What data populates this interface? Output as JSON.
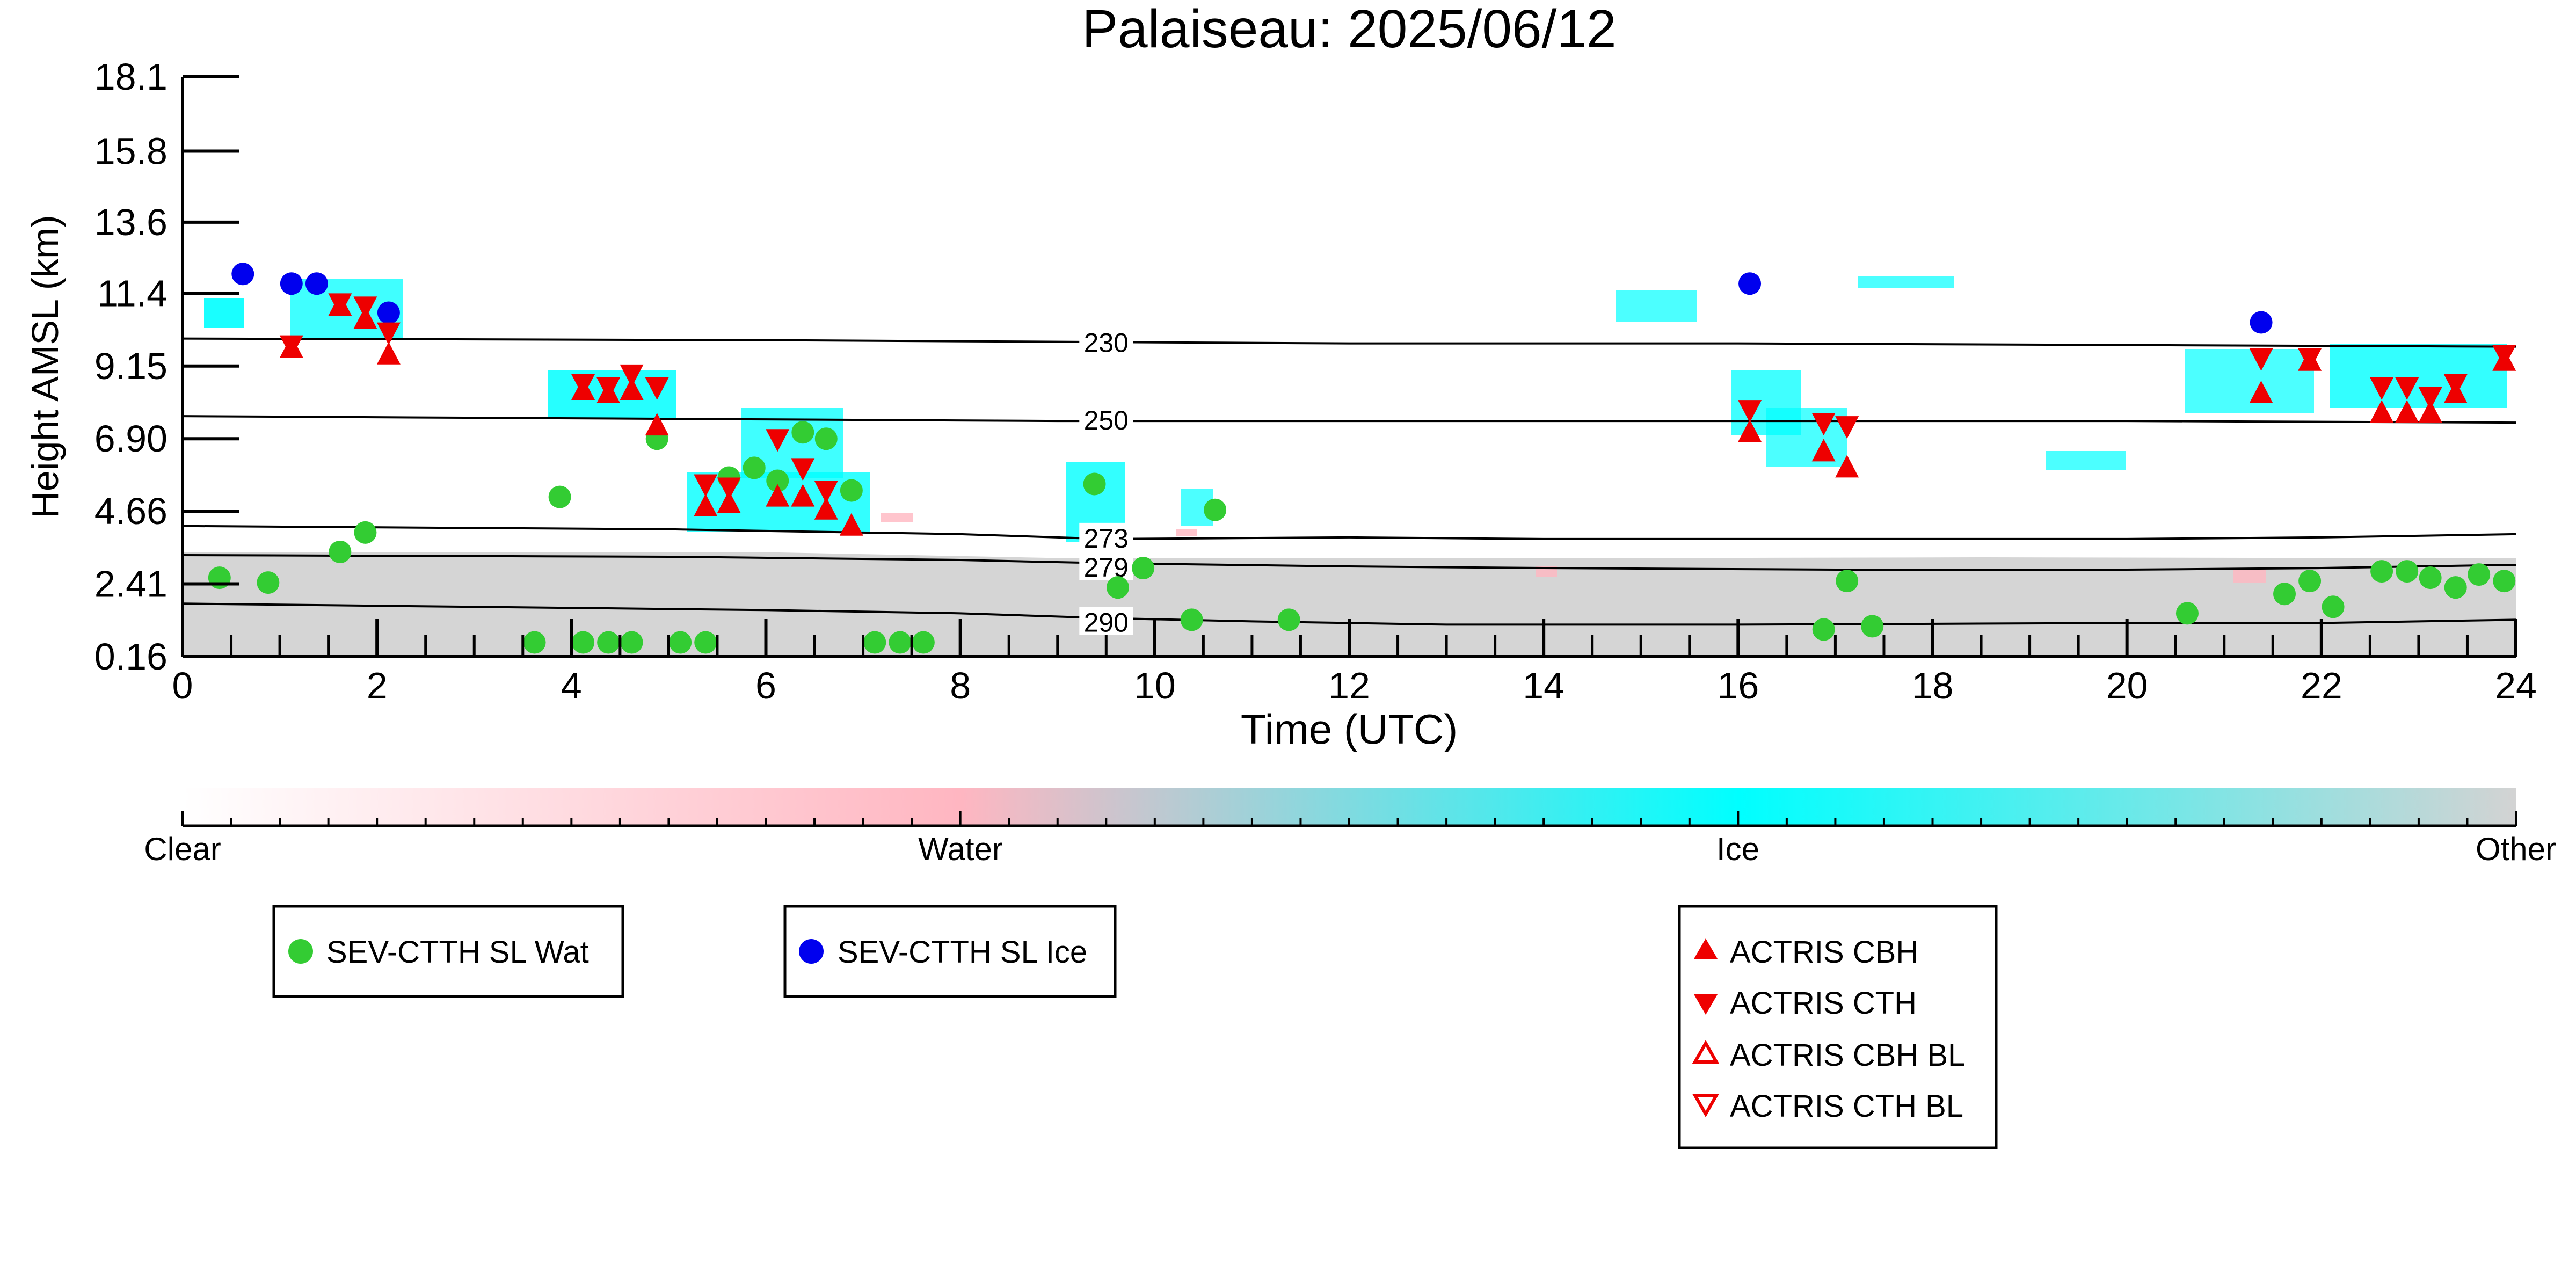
{
  "chart_data": {
    "type": "scatter",
    "title": "Palaiseau: 2025/06/12",
    "xlabel": "Time (UTC)",
    "ylabel": "Height AMSL (km)",
    "xlim": [
      0,
      24
    ],
    "ylim": [
      0.16,
      18.1
    ],
    "x_ticks": [
      "0",
      "2",
      "4",
      "6",
      "8",
      "10",
      "12",
      "14",
      "16",
      "18",
      "20",
      "22",
      "24"
    ],
    "y_ticks": [
      "0.16",
      "2.41",
      "4.66",
      "6.90",
      "9.15",
      "11.4",
      "13.6",
      "15.8",
      "18.1"
    ],
    "grid": false,
    "colorbar": {
      "labels": [
        "Clear",
        "Water",
        "Ice",
        "Other"
      ],
      "colors": [
        "#ffffff",
        "#ffb6c1",
        "#00ffff",
        "#d3d3d3"
      ]
    },
    "temperature_contours": [
      {
        "label": "230",
        "x": [
          0,
          6,
          9,
          12,
          16,
          20,
          24
        ],
        "y": [
          10.0,
          9.95,
          9.9,
          9.85,
          9.85,
          9.8,
          9.75
        ]
      },
      {
        "label": "250",
        "x": [
          0,
          6,
          9,
          12,
          16,
          20,
          24
        ],
        "y": [
          7.6,
          7.5,
          7.45,
          7.45,
          7.45,
          7.45,
          7.4
        ]
      },
      {
        "label": "273",
        "x": [
          0,
          5,
          8,
          9.5,
          12,
          14,
          17,
          20,
          22,
          24
        ],
        "y": [
          4.2,
          4.1,
          3.95,
          3.8,
          3.85,
          3.8,
          3.8,
          3.8,
          3.85,
          3.95
        ]
      },
      {
        "label": "279",
        "x": [
          0,
          5,
          8,
          9.5,
          12,
          14,
          17,
          20,
          22,
          24
        ],
        "y": [
          3.3,
          3.25,
          3.15,
          3.05,
          2.95,
          2.9,
          2.85,
          2.85,
          2.9,
          3.0
        ]
      },
      {
        "label": "290",
        "x": [
          0,
          3,
          6,
          8,
          9.5,
          11,
          12,
          13,
          16,
          20,
          22,
          24
        ],
        "y": [
          1.8,
          1.7,
          1.6,
          1.5,
          1.35,
          1.25,
          1.2,
          1.15,
          1.15,
          1.2,
          1.2,
          1.3
        ]
      }
    ],
    "series": [
      {
        "name": "SEV-CTTH SL Wat",
        "color": "#33cc33",
        "marker": "circle",
        "x": [
          0.38,
          0.88,
          1.62,
          1.88,
          3.62,
          3.88,
          4.12,
          4.38,
          4.62,
          4.88,
          5.12,
          5.38,
          5.62,
          5.88,
          6.12,
          6.38,
          6.62,
          6.88,
          7.12,
          7.38,
          7.62,
          9.38,
          9.62,
          9.88,
          10.38,
          10.62,
          11.38,
          16.88,
          17.12,
          17.38,
          20.62,
          21.62,
          21.88,
          22.12,
          22.62,
          22.88,
          23.12,
          23.38,
          23.62,
          23.88
        ],
        "y": [
          2.6,
          2.45,
          3.4,
          4.0,
          0.6,
          5.1,
          0.6,
          0.6,
          0.6,
          6.9,
          0.6,
          0.6,
          5.7,
          6.0,
          5.6,
          7.1,
          6.9,
          5.3,
          0.6,
          0.6,
          0.6,
          5.5,
          2.3,
          2.9,
          1.3,
          4.7,
          1.3,
          1.0,
          2.5,
          1.1,
          1.5,
          2.1,
          2.5,
          1.7,
          2.8,
          2.8,
          2.6,
          2.3,
          2.7,
          2.5
        ]
      },
      {
        "name": "SEV-CTTH SL Ice",
        "color": "#0000ee",
        "marker": "circle",
        "x": [
          0.62,
          1.12,
          1.38,
          2.12,
          16.12,
          21.38
        ],
        "y": [
          12.0,
          11.7,
          11.7,
          10.8,
          11.7,
          10.5
        ]
      },
      {
        "name": "ACTRIS CBH",
        "color": "#ee0000",
        "marker": "triangle-up",
        "x": [
          1.12,
          1.62,
          1.88,
          2.12,
          4.12,
          4.38,
          4.62,
          4.88,
          5.38,
          5.62,
          6.12,
          6.38,
          6.62,
          6.88,
          16.12,
          16.88,
          17.12,
          21.38,
          21.88,
          22.62,
          22.88,
          23.12,
          23.38,
          23.88
        ],
        "y": [
          9.7,
          11.0,
          10.6,
          9.5,
          8.4,
          8.3,
          8.4,
          7.3,
          4.8,
          4.9,
          5.1,
          5.1,
          4.7,
          4.2,
          7.1,
          6.5,
          6.0,
          8.3,
          9.3,
          7.7,
          7.7,
          7.7,
          8.3,
          9.3
        ]
      },
      {
        "name": "ACTRIS CTH",
        "color": "#ee0000",
        "marker": "triangle-down",
        "x": [
          1.12,
          1.62,
          1.88,
          2.12,
          4.12,
          4.38,
          4.62,
          4.88,
          5.38,
          5.62,
          6.12,
          6.38,
          6.62,
          16.12,
          16.88,
          17.12,
          21.38,
          21.88,
          22.62,
          22.88,
          23.12,
          23.38,
          23.88
        ],
        "y": [
          9.8,
          11.1,
          11.0,
          10.2,
          8.6,
          8.5,
          8.9,
          8.5,
          5.5,
          5.4,
          6.9,
          6.0,
          5.3,
          7.8,
          7.4,
          7.3,
          9.4,
          9.4,
          8.5,
          8.5,
          8.2,
          8.6,
          9.5
        ]
      },
      {
        "name": "ACTRIS CBH BL",
        "color": "#ee0000",
        "marker": "triangle-up-open",
        "x": [],
        "y": []
      },
      {
        "name": "ACTRIS CTH BL",
        "color": "#ee0000",
        "marker": "triangle-down-open",
        "x": [],
        "y": []
      }
    ]
  }
}
